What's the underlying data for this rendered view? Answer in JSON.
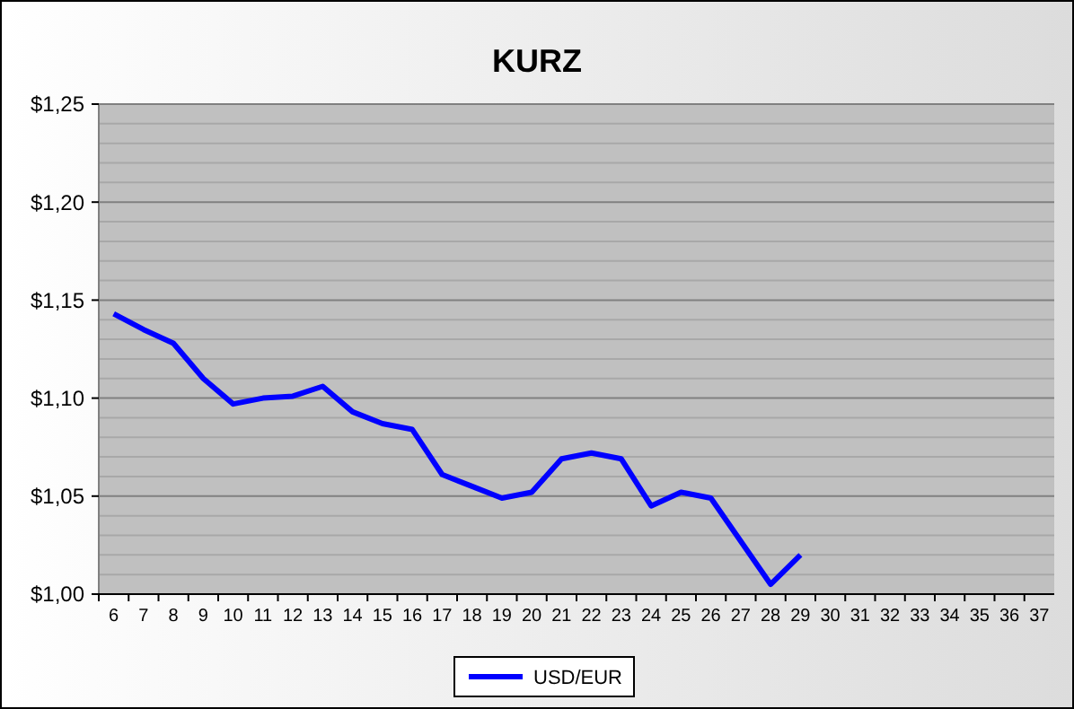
{
  "chart_data": {
    "type": "line",
    "title": "KURZ",
    "categories": [
      "6",
      "7",
      "8",
      "9",
      "10",
      "11",
      "12",
      "13",
      "14",
      "15",
      "16",
      "17",
      "18",
      "19",
      "20",
      "21",
      "22",
      "23",
      "24",
      "25",
      "26",
      "27",
      "28",
      "29",
      "30",
      "31",
      "32",
      "33",
      "34",
      "35",
      "36",
      "37"
    ],
    "series": [
      {
        "name": "USD/EUR",
        "color": "#0000ff",
        "values": [
          1.143,
          1.135,
          1.128,
          1.11,
          1.097,
          1.1,
          1.101,
          1.106,
          1.093,
          1.087,
          1.084,
          1.061,
          1.055,
          1.049,
          1.052,
          1.069,
          1.072,
          1.069,
          1.045,
          1.052,
          1.049,
          1.027,
          1.005,
          1.02,
          null,
          null,
          null,
          null,
          null,
          null,
          null,
          null
        ]
      }
    ],
    "ylim": [
      1,
      1.25
    ],
    "yticks": [
      {
        "value": 1,
        "label": "$1,00"
      },
      {
        "value": 1.01,
        "label": null
      },
      {
        "value": 1.02,
        "label": null
      },
      {
        "value": 1.03,
        "label": null
      },
      {
        "value": 1.04,
        "label": null
      },
      {
        "value": 1.05,
        "label": "$1,05"
      },
      {
        "value": 1.06,
        "label": null
      },
      {
        "value": 1.07,
        "label": null
      },
      {
        "value": 1.08,
        "label": null
      },
      {
        "value": 1.09,
        "label": null
      },
      {
        "value": 1.1,
        "label": "$1,10"
      },
      {
        "value": 1.11,
        "label": null
      },
      {
        "value": 1.12,
        "label": null
      },
      {
        "value": 1.13,
        "label": null
      },
      {
        "value": 1.14,
        "label": null
      },
      {
        "value": 1.15,
        "label": "$1,15"
      },
      {
        "value": 1.16,
        "label": null
      },
      {
        "value": 1.17,
        "label": null
      },
      {
        "value": 1.18,
        "label": null
      },
      {
        "value": 1.19,
        "label": null
      },
      {
        "value": 1.2,
        "label": "$1,20"
      },
      {
        "value": 1.21,
        "label": null
      },
      {
        "value": 1.22,
        "label": null
      },
      {
        "value": 1.23,
        "label": null
      },
      {
        "value": 1.24,
        "label": null
      },
      {
        "value": 1.25,
        "label": "$1,25"
      }
    ],
    "grid": true,
    "legend": "bottom",
    "marker": "none",
    "line_style": "solid"
  }
}
